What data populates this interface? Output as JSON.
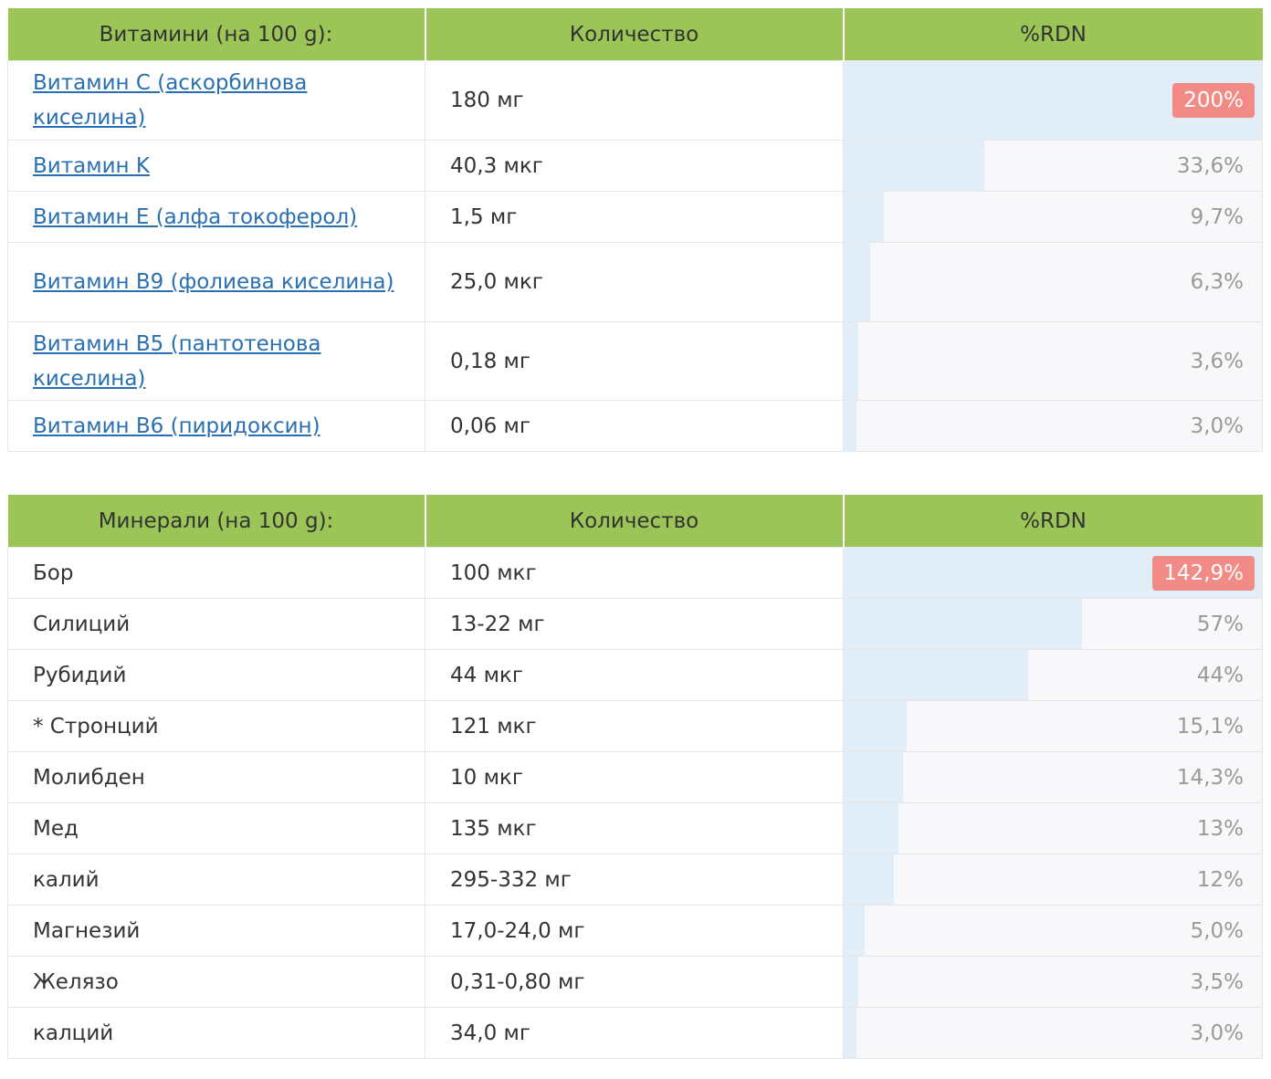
{
  "vitamins": {
    "headers": [
      "Витамини (на 100 g):",
      "Количество",
      "%RDN"
    ],
    "rows": [
      {
        "name": "Витамин C (аскорбинова киселина)",
        "amount": "180 мг",
        "pct": "200%",
        "fill": 1.0,
        "high": true
      },
      {
        "name": "Витамин K",
        "amount": "40,3 мкг",
        "pct": "33,6%",
        "fill": 0.336,
        "high": false
      },
      {
        "name": "Витамин E (алфа токоферол)",
        "amount": "1,5 мг",
        "pct": "9,7%",
        "fill": 0.097,
        "high": false
      },
      {
        "name": "Витамин B9 (фолиева киселина)",
        "amount": "25,0 мкг",
        "pct": "6,3%",
        "fill": 0.063,
        "high": false
      },
      {
        "name": "Витамин B5 (пантотенова киселина)",
        "amount": "0,18 мг",
        "pct": "3,6%",
        "fill": 0.036,
        "high": false
      },
      {
        "name": "Витамин B6 (пиридоксин)",
        "amount": "0,06 мг",
        "pct": "3,0%",
        "fill": 0.03,
        "high": false
      }
    ]
  },
  "minerals": {
    "headers": [
      "Минерали (на 100 g):",
      "Количество",
      "%RDN"
    ],
    "rows": [
      {
        "name": "Бор",
        "amount": "100 мкг",
        "pct": "142,9%",
        "fill": 1.0,
        "high": true
      },
      {
        "name": "Силиций",
        "amount": "13-22 мг",
        "pct": "57%",
        "fill": 0.57,
        "high": false
      },
      {
        "name": "Рубидий",
        "amount": "44 мкг",
        "pct": "44%",
        "fill": 0.44,
        "high": false
      },
      {
        "name": "* Стронций",
        "amount": "121 мкг",
        "pct": "15,1%",
        "fill": 0.151,
        "high": false
      },
      {
        "name": "Молибден",
        "amount": "10 мкг",
        "pct": "14,3%",
        "fill": 0.143,
        "high": false
      },
      {
        "name": "Мед",
        "amount": "135 мкг",
        "pct": "13%",
        "fill": 0.13,
        "high": false
      },
      {
        "name": "калий",
        "amount": "295-332 мг",
        "pct": "12%",
        "fill": 0.12,
        "high": false
      },
      {
        "name": "Магнезий",
        "amount": "17,0-24,0 мг",
        "pct": "5,0%",
        "fill": 0.05,
        "high": false
      },
      {
        "name": "Желязо",
        "amount": "0,31-0,80 мг",
        "pct": "3,5%",
        "fill": 0.035,
        "high": false
      },
      {
        "name": "калций",
        "amount": "34,0 мг",
        "pct": "3,0%",
        "fill": 0.03,
        "high": false
      }
    ]
  },
  "colors": {
    "header_bg": "#9bc556",
    "link": "#2a6fb0",
    "bar": "#e2eef7",
    "high_badge": "#f28b86"
  }
}
